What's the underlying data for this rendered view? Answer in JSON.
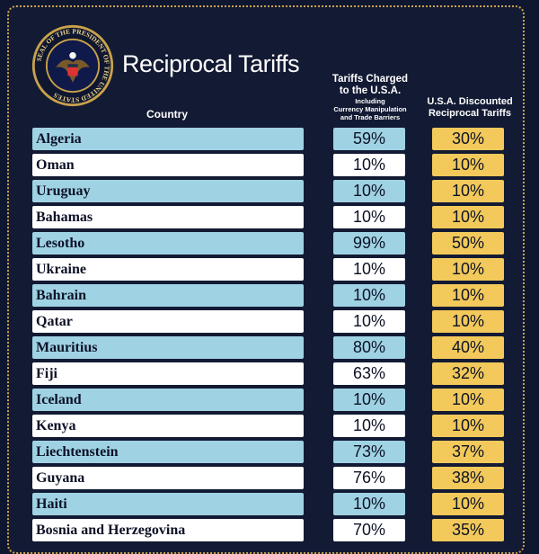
{
  "header": {
    "title": "Reciprocal Tariffs",
    "seal_text": "SEAL OF THE PRESIDENT OF THE UNITED STATES",
    "col_country": "Country",
    "col_charged_main_1": "Tariffs Charged",
    "col_charged_main_2": "to the U.S.A.",
    "col_charged_sub_1": "Including",
    "col_charged_sub_2": "Currency Manipulation",
    "col_charged_sub_3": "and Trade Barriers",
    "col_disc_1": "U.S.A. Discounted",
    "col_disc_2": "Reciprocal Tariffs"
  },
  "colors": {
    "background": "#131a33",
    "row_blue": "#9fd3e4",
    "row_white": "#ffffff",
    "discount": "#f2c95a",
    "border_gold": "#c9a24a"
  },
  "chart_data": {
    "type": "table",
    "title": "Reciprocal Tariffs",
    "columns": [
      "Country",
      "Tariffs Charged to the U.S.A. Including Currency Manipulation and Trade Barriers",
      "U.S.A. Discounted Reciprocal Tariffs"
    ],
    "rows": [
      {
        "country": "Algeria",
        "charged": "59%",
        "discounted": "30%"
      },
      {
        "country": "Oman",
        "charged": "10%",
        "discounted": "10%"
      },
      {
        "country": "Uruguay",
        "charged": "10%",
        "discounted": "10%"
      },
      {
        "country": "Bahamas",
        "charged": "10%",
        "discounted": "10%"
      },
      {
        "country": "Lesotho",
        "charged": "99%",
        "discounted": "50%"
      },
      {
        "country": "Ukraine",
        "charged": "10%",
        "discounted": "10%"
      },
      {
        "country": "Bahrain",
        "charged": "10%",
        "discounted": "10%"
      },
      {
        "country": "Qatar",
        "charged": "10%",
        "discounted": "10%"
      },
      {
        "country": "Mauritius",
        "charged": "80%",
        "discounted": "40%"
      },
      {
        "country": "Fiji",
        "charged": "63%",
        "discounted": "32%"
      },
      {
        "country": "Iceland",
        "charged": "10%",
        "discounted": "10%"
      },
      {
        "country": "Kenya",
        "charged": "10%",
        "discounted": "10%"
      },
      {
        "country": "Liechtenstein",
        "charged": "73%",
        "discounted": "37%"
      },
      {
        "country": "Guyana",
        "charged": "76%",
        "discounted": "38%"
      },
      {
        "country": "Haiti",
        "charged": "10%",
        "discounted": "10%"
      },
      {
        "country": "Bosnia and Herzegovina",
        "charged": "70%",
        "discounted": "35%"
      }
    ]
  }
}
